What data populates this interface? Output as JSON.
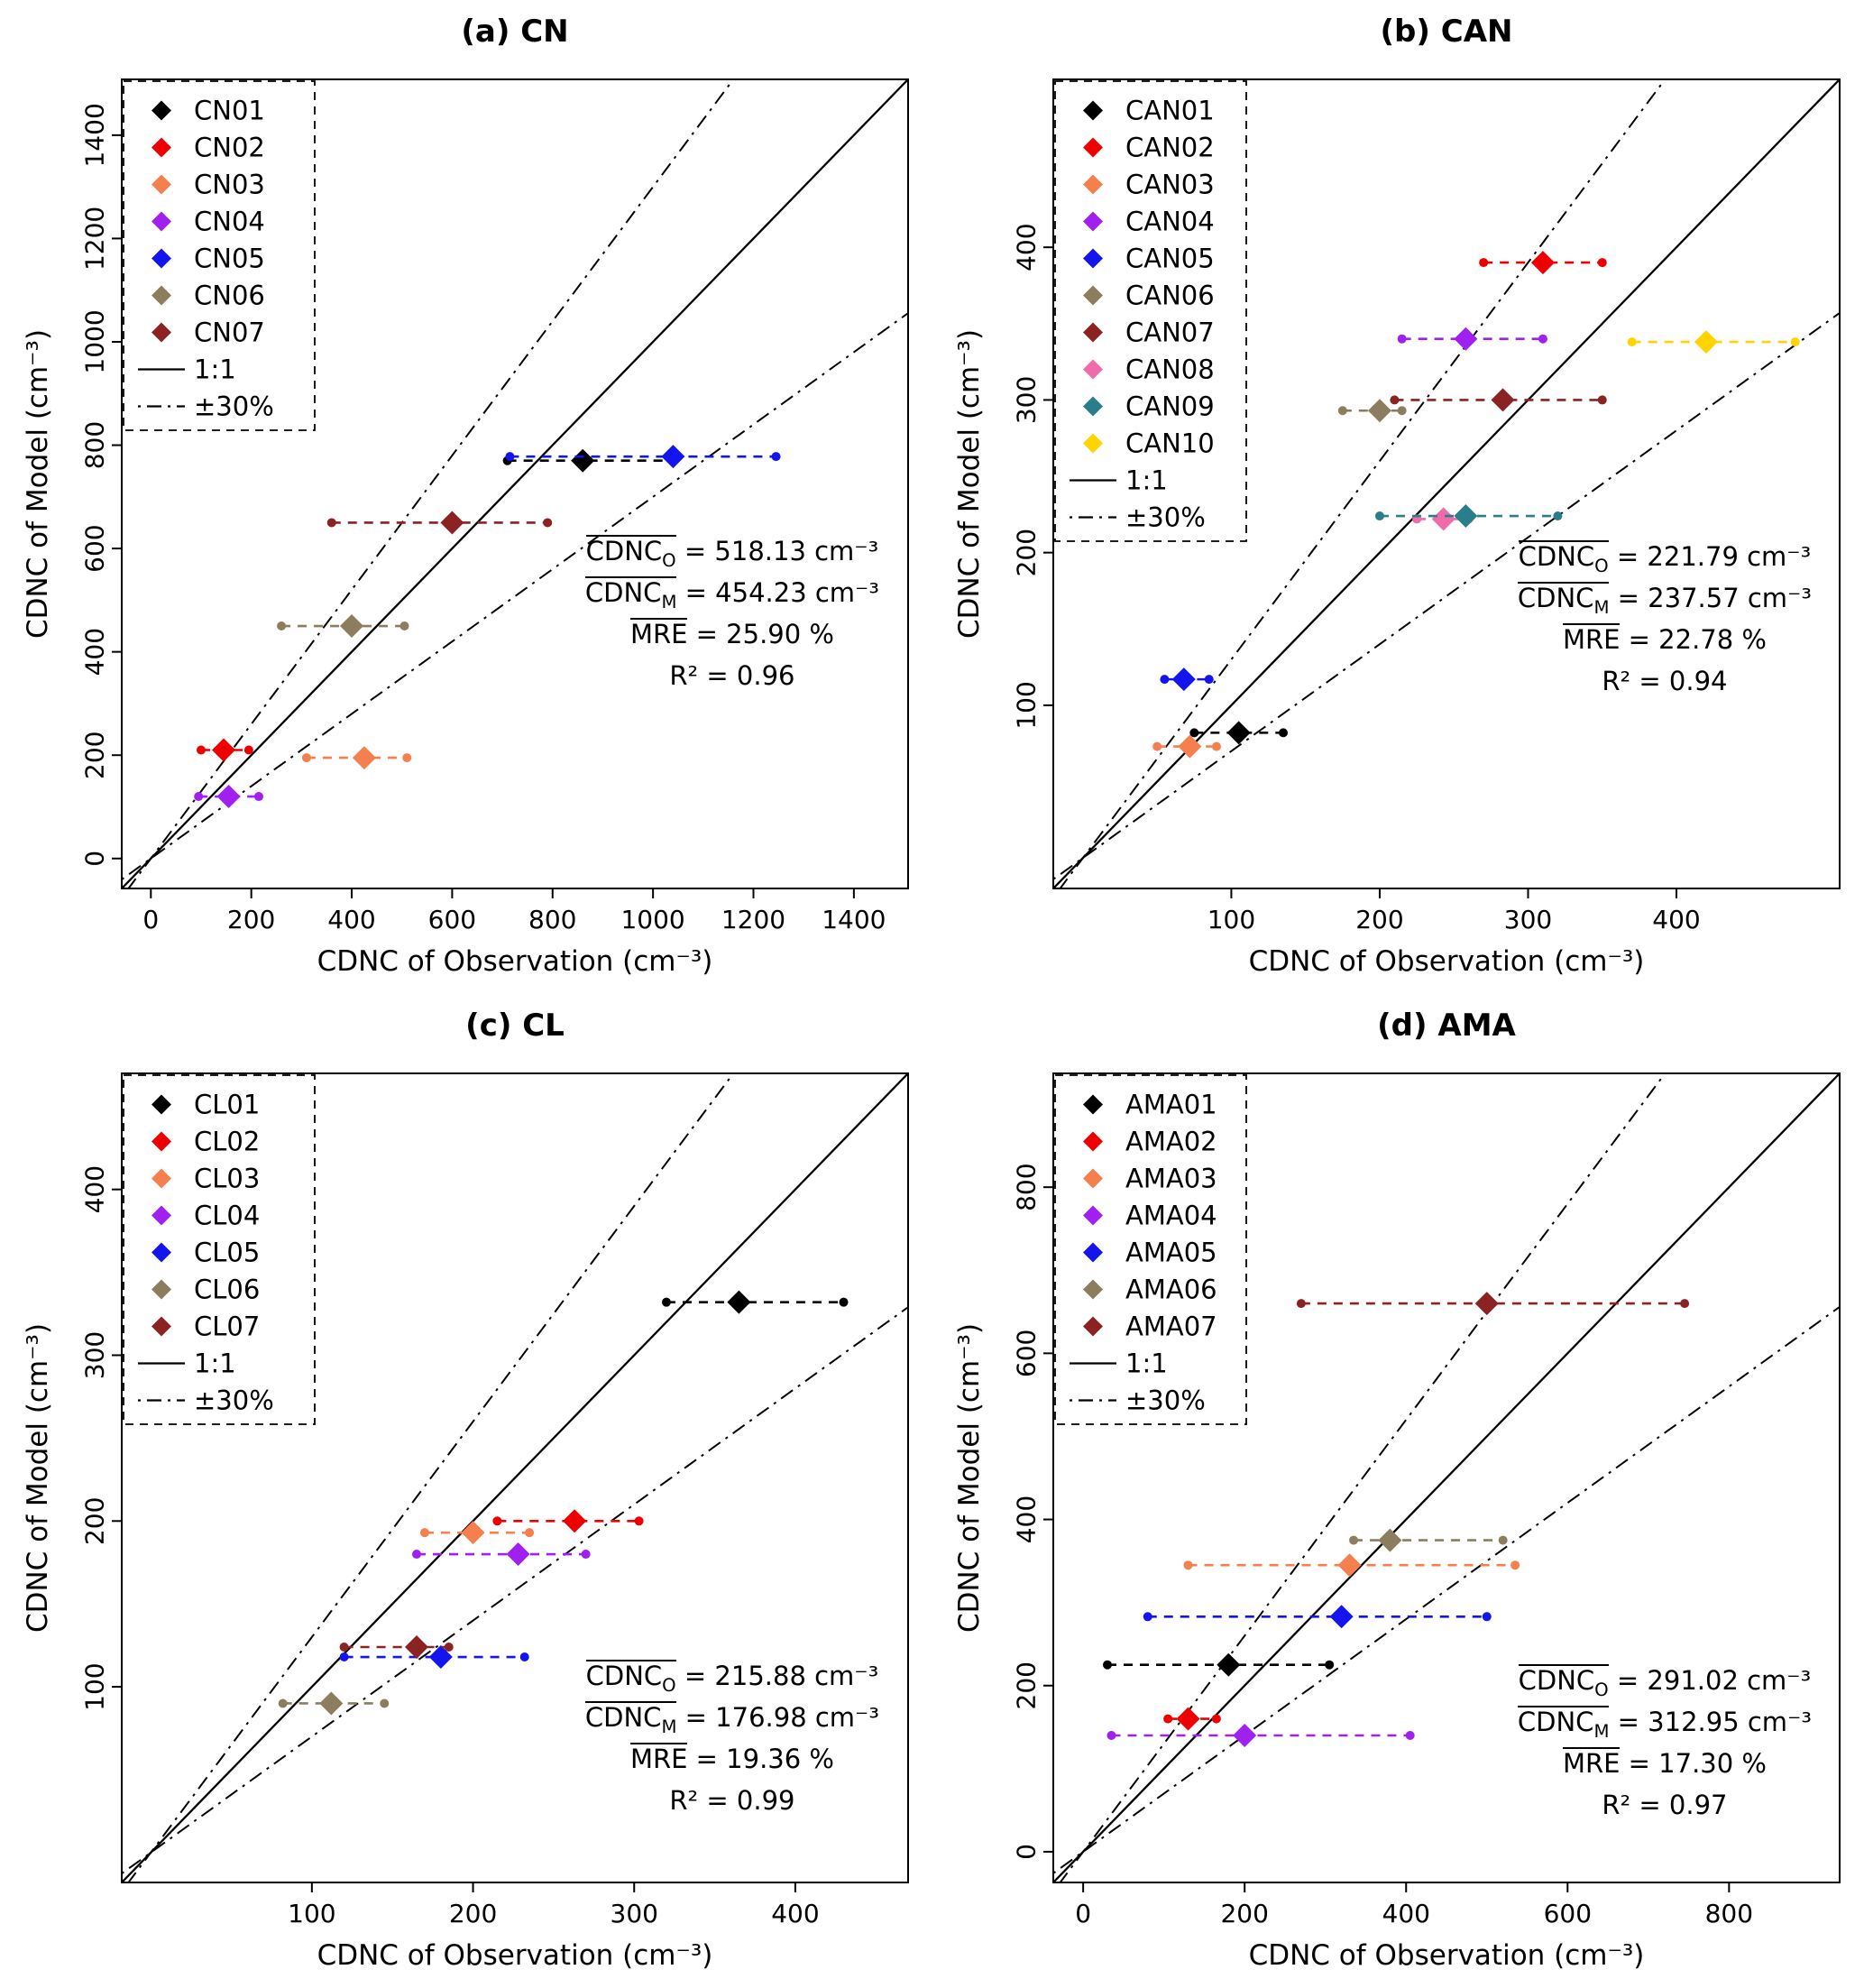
{
  "figure": {
    "background": "#ffffff",
    "one_to_one_label": "1:1",
    "band_label": "±30%"
  },
  "chart_data": [
    {
      "id": "cn",
      "type": "scatter",
      "title": "(a) CN",
      "xlabel": "CDNC of Observation (cm⁻³)",
      "ylabel": "CDNC of Model (cm⁻³)",
      "lim": [
        -58,
        1508
      ],
      "ticks": [
        0,
        200,
        400,
        600,
        800,
        1000,
        1200,
        1400
      ],
      "band_frac": 0.3,
      "legend_extra": [
        {
          "label": "1:1",
          "style": "solid"
        },
        {
          "label": "±30%",
          "style": "dotdash"
        }
      ],
      "series": [
        {
          "name": "CN01",
          "color": "#000000",
          "obs": 860,
          "model": 770,
          "obs_min": 710,
          "obs_max": 1040
        },
        {
          "name": "CN02",
          "color": "#EE0000",
          "obs": 145,
          "model": 210,
          "obs_min": 100,
          "obs_max": 195
        },
        {
          "name": "CN03",
          "color": "#F5804E",
          "obs": 425,
          "model": 195,
          "obs_min": 310,
          "obs_max": 510
        },
        {
          "name": "CN04",
          "color": "#A020F0",
          "obs": 155,
          "model": 120,
          "obs_min": 95,
          "obs_max": 215
        },
        {
          "name": "CN05",
          "color": "#1414EE",
          "obs": 1040,
          "model": 778,
          "obs_min": 715,
          "obs_max": 1245
        },
        {
          "name": "CN06",
          "color": "#8B7D5E",
          "obs": 400,
          "model": 450,
          "obs_min": 260,
          "obs_max": 505
        },
        {
          "name": "CN07",
          "color": "#8B2323",
          "obs": 600,
          "model": 650,
          "obs_min": 360,
          "obs_max": 790
        }
      ],
      "stats": [
        {
          "name": "CDNC",
          "sub": "O",
          "overline": true,
          "value": "518.13",
          "unit": " cm⁻³"
        },
        {
          "name": "CDNC",
          "sub": "M",
          "overline": true,
          "value": "454.23",
          "unit": " cm⁻³"
        },
        {
          "name": "MRE",
          "sub": "",
          "overline": true,
          "value": "25.90",
          "unit": " %"
        },
        {
          "name": "R²",
          "sub": "",
          "overline": false,
          "value": "0.96",
          "unit": ""
        }
      ],
      "stats_pos": {
        "right": 58,
        "top": 588
      }
    },
    {
      "id": "can",
      "type": "scatter",
      "title": "(b) CAN",
      "xlabel": "CDNC of Observation (cm⁻³)",
      "ylabel": "CDNC of Model (cm⁻³)",
      "lim": [
        -20,
        510
      ],
      "ticks": [
        100,
        200,
        300,
        400
      ],
      "band_frac": 0.3,
      "legend_extra": [
        {
          "label": "1:1",
          "style": "solid"
        },
        {
          "label": "±30%",
          "style": "dotdash"
        }
      ],
      "series": [
        {
          "name": "CAN01",
          "color": "#000000",
          "obs": 105,
          "model": 82,
          "obs_min": 75,
          "obs_max": 135
        },
        {
          "name": "CAN02",
          "color": "#EE0000",
          "obs": 310,
          "model": 390,
          "obs_min": 270,
          "obs_max": 350
        },
        {
          "name": "CAN03",
          "color": "#F5804E",
          "obs": 72,
          "model": 73,
          "obs_min": 50,
          "obs_max": 90
        },
        {
          "name": "CAN04",
          "color": "#A020F0",
          "obs": 258,
          "model": 340,
          "obs_min": 215,
          "obs_max": 310
        },
        {
          "name": "CAN05",
          "color": "#1414EE",
          "obs": 68,
          "model": 117,
          "obs_min": 55,
          "obs_max": 85
        },
        {
          "name": "CAN06",
          "color": "#8B7D5E",
          "obs": 200,
          "model": 293,
          "obs_min": 175,
          "obs_max": 215
        },
        {
          "name": "CAN07",
          "color": "#8B2323",
          "obs": 283,
          "model": 300,
          "obs_min": 210,
          "obs_max": 350
        },
        {
          "name": "CAN08",
          "color": "#F06CA8",
          "obs": 243,
          "model": 222,
          "obs_min": 225,
          "obs_max": 260
        },
        {
          "name": "CAN09",
          "color": "#2A7E8C",
          "obs": 258,
          "model": 224,
          "obs_min": 200,
          "obs_max": 320
        },
        {
          "name": "CAN10",
          "color": "#FFD400",
          "obs": 420,
          "model": 338,
          "obs_min": 370,
          "obs_max": 480
        }
      ],
      "stats": [
        {
          "name": "CDNC",
          "sub": "O",
          "overline": true,
          "value": "221.79",
          "unit": " cm⁻³"
        },
        {
          "name": "CDNC",
          "sub": "M",
          "overline": true,
          "value": "237.57",
          "unit": " cm⁻³"
        },
        {
          "name": "MRE",
          "sub": "",
          "overline": true,
          "value": "22.78",
          "unit": " %"
        },
        {
          "name": "R²",
          "sub": "",
          "overline": false,
          "value": "0.94",
          "unit": ""
        }
      ],
      "stats_pos": {
        "right": 58,
        "top": 594
      }
    },
    {
      "id": "cl",
      "type": "scatter",
      "title": "(c) CL",
      "xlabel": "CDNC of Observation (cm⁻³)",
      "ylabel": "CDNC of Model (cm⁻³)",
      "lim": [
        -18,
        470
      ],
      "ticks": [
        100,
        200,
        300,
        400
      ],
      "band_frac": 0.3,
      "legend_extra": [
        {
          "label": "1:1",
          "style": "solid"
        },
        {
          "label": "±30%",
          "style": "dotdash"
        }
      ],
      "series": [
        {
          "name": "CL01",
          "color": "#000000",
          "obs": 365,
          "model": 332,
          "obs_min": 320,
          "obs_max": 430
        },
        {
          "name": "CL02",
          "color": "#EE0000",
          "obs": 263,
          "model": 200,
          "obs_min": 215,
          "obs_max": 303
        },
        {
          "name": "CL03",
          "color": "#F5804E",
          "obs": 200,
          "model": 193,
          "obs_min": 170,
          "obs_max": 235
        },
        {
          "name": "CL04",
          "color": "#A020F0",
          "obs": 228,
          "model": 180,
          "obs_min": 165,
          "obs_max": 270
        },
        {
          "name": "CL05",
          "color": "#1414EE",
          "obs": 180,
          "model": 118,
          "obs_min": 120,
          "obs_max": 232
        },
        {
          "name": "CL06",
          "color": "#8B7D5E",
          "obs": 112,
          "model": 90,
          "obs_min": 82,
          "obs_max": 145
        },
        {
          "name": "CL07",
          "color": "#8B2323",
          "obs": 165,
          "model": 124,
          "obs_min": 120,
          "obs_max": 185
        }
      ],
      "stats": [
        {
          "name": "CDNC",
          "sub": "O",
          "overline": true,
          "value": "215.88",
          "unit": " cm⁻³"
        },
        {
          "name": "CDNC",
          "sub": "M",
          "overline": true,
          "value": "176.98",
          "unit": " cm⁻³"
        },
        {
          "name": "MRE",
          "sub": "",
          "overline": true,
          "value": "19.36",
          "unit": " %"
        },
        {
          "name": "R²",
          "sub": "",
          "overline": false,
          "value": "0.99",
          "unit": ""
        }
      ],
      "stats_pos": {
        "right": 58,
        "top": 733
      }
    },
    {
      "id": "ama",
      "type": "scatter",
      "title": "(d) AMA",
      "xlabel": "CDNC of Observation (cm⁻³)",
      "ylabel": "CDNC of Model (cm⁻³)",
      "lim": [
        -37,
        937
      ],
      "ticks": [
        0,
        200,
        400,
        600,
        800
      ],
      "band_frac": 0.3,
      "legend_extra": [
        {
          "label": "1:1",
          "style": "solid"
        },
        {
          "label": "±30%",
          "style": "dotdash"
        }
      ],
      "series": [
        {
          "name": "AMA01",
          "color": "#000000",
          "obs": 180,
          "model": 225,
          "obs_min": 30,
          "obs_max": 305
        },
        {
          "name": "AMA02",
          "color": "#EE0000",
          "obs": 130,
          "model": 160,
          "obs_min": 105,
          "obs_max": 165
        },
        {
          "name": "AMA03",
          "color": "#F5804E",
          "obs": 330,
          "model": 345,
          "obs_min": 130,
          "obs_max": 535
        },
        {
          "name": "AMA04",
          "color": "#A020F0",
          "obs": 200,
          "model": 140,
          "obs_min": 35,
          "obs_max": 405
        },
        {
          "name": "AMA05",
          "color": "#1414EE",
          "obs": 320,
          "model": 283,
          "obs_min": 80,
          "obs_max": 500
        },
        {
          "name": "AMA06",
          "color": "#8B7D5E",
          "obs": 380,
          "model": 375,
          "obs_min": 335,
          "obs_max": 520
        },
        {
          "name": "AMA07",
          "color": "#8B2323",
          "obs": 500,
          "model": 660,
          "obs_min": 270,
          "obs_max": 745
        }
      ],
      "stats": [
        {
          "name": "CDNC",
          "sub": "O",
          "overline": true,
          "value": "291.02",
          "unit": " cm⁻³"
        },
        {
          "name": "CDNC",
          "sub": "M",
          "overline": true,
          "value": "312.95",
          "unit": " cm⁻³"
        },
        {
          "name": "MRE",
          "sub": "",
          "overline": true,
          "value": "17.30",
          "unit": " %"
        },
        {
          "name": "R²",
          "sub": "",
          "overline": false,
          "value": "0.97",
          "unit": ""
        }
      ],
      "stats_pos": {
        "right": 58,
        "top": 738
      }
    }
  ]
}
